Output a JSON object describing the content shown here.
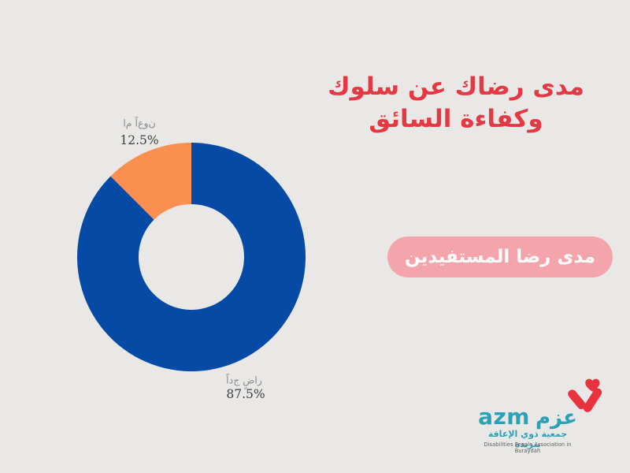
{
  "background_color": "#e9e8e6",
  "title": {
    "text": "مدى رضاك عن سلوك وكفاءة السائق",
    "color": "#e43843"
  },
  "badge": {
    "label": "مدى رضا المستفيدين",
    "bg_color": "#f4a5ac",
    "text_color": "#ffffff"
  },
  "chart_data": {
    "type": "pie",
    "donut": true,
    "start_angle": "12 o'clock",
    "direction": "clockwise from top for first slice",
    "outer_radius_px": 145,
    "inner_radius_px": 67,
    "slices": [
      {
        "label": "راضٍ جداً",
        "value": 87.5,
        "pct_label": "87.5%",
        "color": "#054aa5"
      },
      {
        "label": "نوعاً ما",
        "value": 12.5,
        "pct_label": "12.5%",
        "color": "#fb8f4f"
      }
    ],
    "label_color": "#8c8c8c",
    "pct_color": "#3f3f3f",
    "legend": "none",
    "note": "labels drawn outside wedges; Arabic letters rendered disconnected"
  },
  "logo": {
    "wordmark_latin": "azm",
    "wordmark_arabic": "عزم",
    "tagline_arabic": "جمعية ذوي الإعاقة ببريدة",
    "tagline_english": "Disabilities People Association in Buraydah",
    "teal_color": "#2ba1b5",
    "heart_color": "#e8323e"
  }
}
